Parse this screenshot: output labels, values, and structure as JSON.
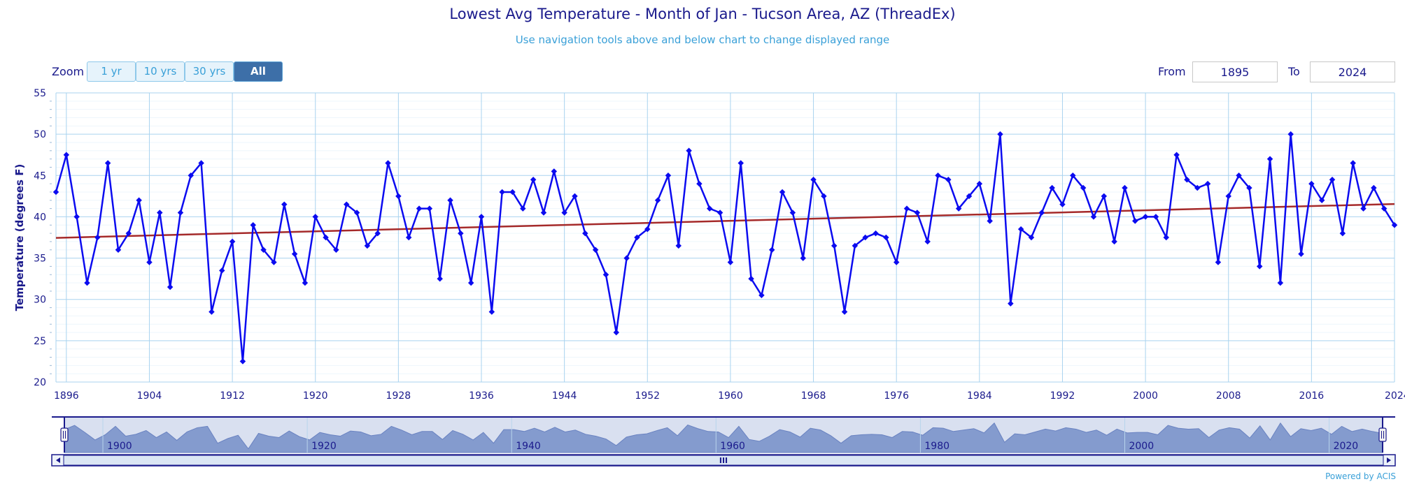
{
  "chart": {
    "title": "Lowest Avg Temperature - Month of Jan - Tucson Area, AZ (ThreadEx)",
    "subtitle": "Use navigation tools above and below chart to change displayed range",
    "credit": "Powered by ACIS"
  },
  "zoom": {
    "label": "Zoom",
    "buttons": [
      "1 yr",
      "10 yrs",
      "30 yrs",
      "All"
    ],
    "active": "All"
  },
  "range": {
    "from_label": "From",
    "from_value": "1895",
    "to_label": "To",
    "to_value": "2024"
  },
  "chart_data": {
    "type": "line",
    "title": "Lowest Avg Temperature - Month of Jan - Tucson Area, AZ (ThreadEx)",
    "ylabel": "Temperature (degrees F)",
    "xlim": [
      1895,
      2024
    ],
    "ylim": [
      20,
      55
    ],
    "yticks": [
      20,
      25,
      30,
      35,
      40,
      45,
      50,
      55
    ],
    "xticks": [
      1896,
      1904,
      1912,
      1920,
      1928,
      1936,
      1944,
      1952,
      1960,
      1968,
      1976,
      1984,
      1992,
      2000,
      2008,
      2016,
      2024
    ],
    "grid": true,
    "series": [
      {
        "color": "#0b0bf0",
        "x": [
          1895,
          1896,
          1897,
          1898,
          1899,
          1900,
          1901,
          1902,
          1903,
          1904,
          1905,
          1906,
          1907,
          1908,
          1909,
          1910,
          1911,
          1912,
          1913,
          1914,
          1915,
          1916,
          1917,
          1918,
          1919,
          1920,
          1921,
          1922,
          1923,
          1924,
          1925,
          1926,
          1927,
          1928,
          1929,
          1930,
          1931,
          1932,
          1933,
          1934,
          1935,
          1936,
          1937,
          1938,
          1939,
          1940,
          1941,
          1942,
          1943,
          1944,
          1945,
          1946,
          1947,
          1948,
          1949,
          1950,
          1951,
          1952,
          1953,
          1954,
          1955,
          1956,
          1957,
          1958,
          1959,
          1960,
          1961,
          1962,
          1963,
          1964,
          1965,
          1966,
          1967,
          1968,
          1969,
          1970,
          1971,
          1972,
          1973,
          1974,
          1975,
          1976,
          1977,
          1978,
          1979,
          1980,
          1981,
          1982,
          1983,
          1984,
          1985,
          1986,
          1987,
          1988,
          1989,
          1990,
          1991,
          1992,
          1993,
          1994,
          1995,
          1996,
          1997,
          1998,
          1999,
          2000,
          2001,
          2002,
          2003,
          2004,
          2005,
          2006,
          2007,
          2008,
          2009,
          2010,
          2011,
          2012,
          2013,
          2014,
          2015,
          2016,
          2017,
          2018,
          2019,
          2020,
          2021,
          2022,
          2023,
          2024
        ],
        "values": [
          43,
          47.5,
          40,
          32,
          37.5,
          46.5,
          36,
          38,
          42,
          34.5,
          40.5,
          31.5,
          40.5,
          45,
          46.5,
          28.5,
          33.5,
          37,
          22.5,
          39,
          36,
          34.5,
          41.5,
          35.5,
          32,
          40,
          37.5,
          36,
          41.5,
          40.5,
          36.5,
          38,
          46.5,
          42.5,
          37.5,
          41,
          41,
          32.5,
          42,
          38,
          32,
          40,
          28.5,
          43,
          43,
          41,
          44.5,
          40.5,
          45.5,
          40.5,
          42.5,
          38,
          36,
          33,
          26,
          35,
          37.5,
          38.5,
          42,
          45,
          36.5,
          48,
          44,
          41,
          40.5,
          34.5,
          46.5,
          32.5,
          30.5,
          36,
          43,
          40.5,
          35,
          44.5,
          42.5,
          36.5,
          28.5,
          36.5,
          37.5,
          38,
          37.5,
          34.5,
          41,
          40.5,
          37,
          45,
          44.5,
          41,
          42.5,
          44,
          39.5,
          50,
          29.5,
          38.5,
          37.5,
          40.5,
          43.5,
          41.5,
          45,
          43.5,
          40,
          42.5,
          37,
          43.5,
          39.5,
          40,
          40,
          37.5,
          47.5,
          44.5,
          43.5,
          44,
          34.5,
          42.5,
          45,
          43.5,
          34,
          47,
          32,
          50,
          35.5,
          44,
          42,
          44.5,
          38,
          46.5,
          41,
          43.5,
          41,
          39
        ]
      },
      {
        "color": "#a52a2a",
        "x": [
          1895,
          2024
        ],
        "values": [
          37.45,
          41.55
        ]
      }
    ]
  },
  "navigator": {
    "labels": [
      "1900",
      "1920",
      "1940",
      "1960",
      "1980",
      "2000",
      "2020"
    ],
    "scroll_grip": "III"
  }
}
